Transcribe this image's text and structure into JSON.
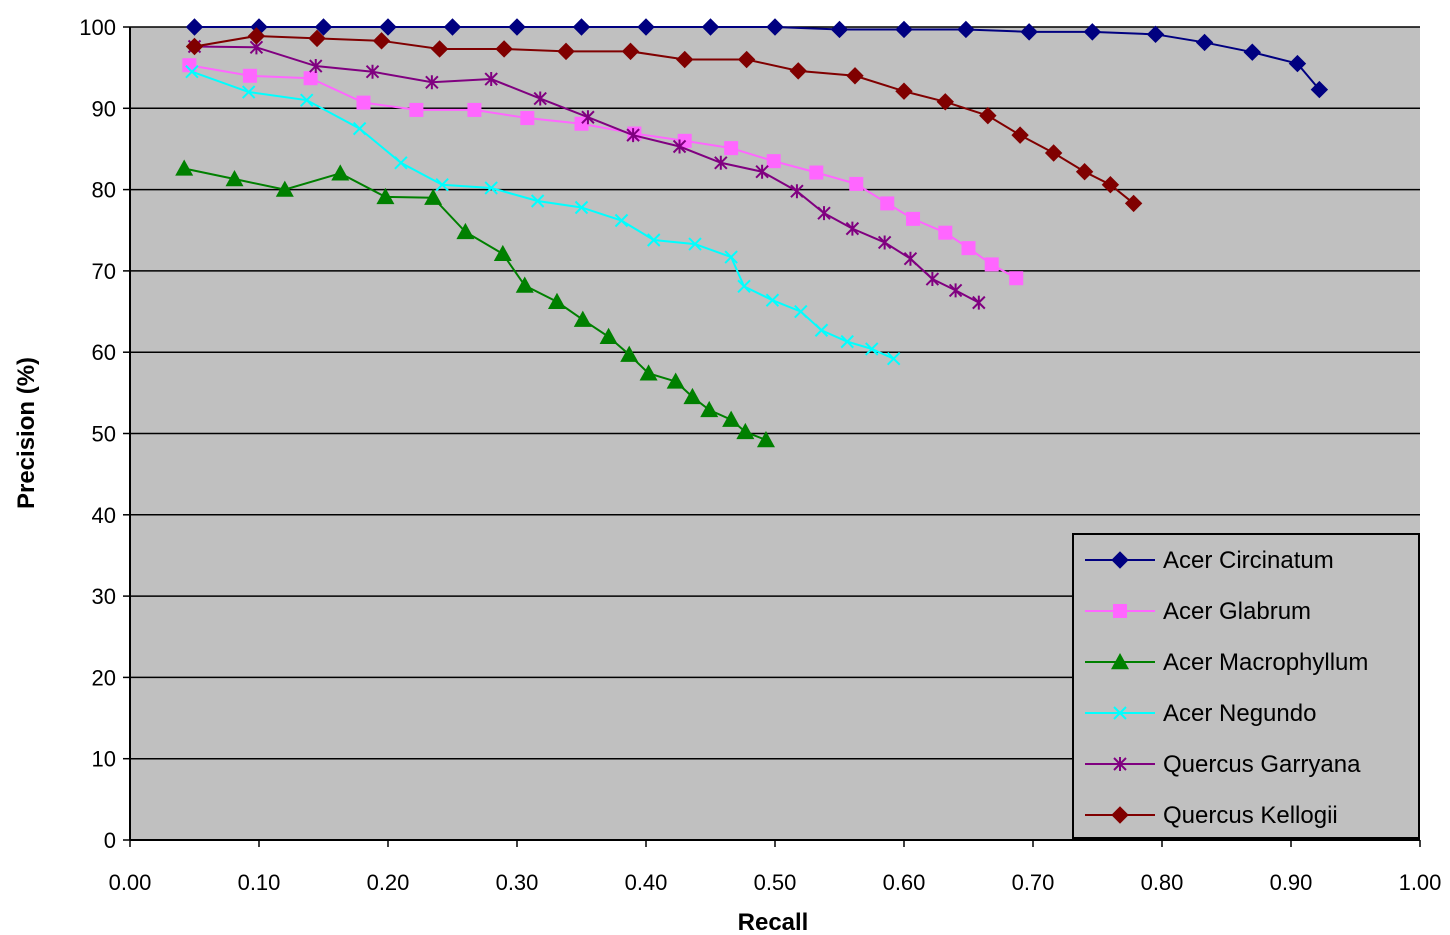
{
  "chart_data": {
    "type": "line",
    "title": "",
    "xlabel": "Recall",
    "ylabel": "Precision (%)",
    "xlim": [
      0,
      1
    ],
    "ylim": [
      0,
      100
    ],
    "x_ticks": [
      "0.00",
      "0.10",
      "0.20",
      "0.30",
      "0.40",
      "0.50",
      "0.60",
      "0.70",
      "0.80",
      "0.90",
      "1.00"
    ],
    "y_ticks": [
      "0",
      "10",
      "20",
      "30",
      "40",
      "50",
      "60",
      "70",
      "80",
      "90",
      "100"
    ],
    "grid": "horizontal",
    "legend_position": "bottom-right",
    "plot_background": "#c0c0c0",
    "series": [
      {
        "name": "Acer Circinatum",
        "color": "#000080",
        "marker": "diamond",
        "points": [
          [
            0.05,
            100
          ],
          [
            0.1,
            100
          ],
          [
            0.15,
            100
          ],
          [
            0.2,
            100
          ],
          [
            0.25,
            100
          ],
          [
            0.3,
            100
          ],
          [
            0.35,
            100
          ],
          [
            0.4,
            100
          ],
          [
            0.45,
            100
          ],
          [
            0.5,
            100
          ],
          [
            0.55,
            99.7
          ],
          [
            0.6,
            99.7
          ],
          [
            0.648,
            99.7
          ],
          [
            0.697,
            99.4
          ],
          [
            0.746,
            99.4
          ],
          [
            0.795,
            99.1
          ],
          [
            0.833,
            98.1
          ],
          [
            0.87,
            96.9
          ],
          [
            0.905,
            95.5
          ],
          [
            0.922,
            92.3
          ]
        ]
      },
      {
        "name": "Acer Glabrum",
        "color": "#ff66ff",
        "marker": "square",
        "points": [
          [
            0.046,
            95.3
          ],
          [
            0.093,
            94.0
          ],
          [
            0.14,
            93.7
          ],
          [
            0.181,
            90.7
          ],
          [
            0.222,
            89.8
          ],
          [
            0.267,
            89.8
          ],
          [
            0.308,
            88.8
          ],
          [
            0.35,
            88.1
          ],
          [
            0.391,
            86.9
          ],
          [
            0.43,
            86.0
          ],
          [
            0.466,
            85.1
          ],
          [
            0.499,
            83.5
          ],
          [
            0.532,
            82.1
          ],
          [
            0.563,
            80.7
          ],
          [
            0.587,
            78.3
          ],
          [
            0.607,
            76.4
          ],
          [
            0.632,
            74.7
          ],
          [
            0.65,
            72.8
          ],
          [
            0.668,
            70.8
          ],
          [
            0.687,
            69.1
          ]
        ]
      },
      {
        "name": "Acer Macrophyllum",
        "color": "#008000",
        "marker": "triangle",
        "points": [
          [
            0.042,
            82.6
          ],
          [
            0.081,
            81.3
          ],
          [
            0.12,
            80.0
          ],
          [
            0.163,
            82.0
          ],
          [
            0.198,
            79.1
          ],
          [
            0.235,
            79.0
          ],
          [
            0.26,
            74.8
          ],
          [
            0.289,
            72.1
          ],
          [
            0.306,
            68.2
          ],
          [
            0.331,
            66.2
          ],
          [
            0.351,
            64.0
          ],
          [
            0.371,
            61.9
          ],
          [
            0.387,
            59.7
          ],
          [
            0.402,
            57.4
          ],
          [
            0.423,
            56.4
          ],
          [
            0.436,
            54.5
          ],
          [
            0.449,
            52.9
          ],
          [
            0.466,
            51.7
          ],
          [
            0.477,
            50.2
          ],
          [
            0.493,
            49.2
          ]
        ]
      },
      {
        "name": "Acer Negundo",
        "color": "#00ffff",
        "marker": "x",
        "points": [
          [
            0.048,
            94.5
          ],
          [
            0.092,
            92.0
          ],
          [
            0.137,
            91.0
          ],
          [
            0.178,
            87.5
          ],
          [
            0.21,
            83.3
          ],
          [
            0.242,
            80.6
          ],
          [
            0.28,
            80.2
          ],
          [
            0.316,
            78.6
          ],
          [
            0.35,
            77.8
          ],
          [
            0.381,
            76.2
          ],
          [
            0.406,
            73.8
          ],
          [
            0.438,
            73.3
          ],
          [
            0.466,
            71.7
          ],
          [
            0.476,
            68.1
          ],
          [
            0.498,
            66.4
          ],
          [
            0.52,
            65.0
          ],
          [
            0.536,
            62.7
          ],
          [
            0.556,
            61.3
          ],
          [
            0.575,
            60.4
          ],
          [
            0.592,
            59.2
          ]
        ]
      },
      {
        "name": "Quercus Garryana",
        "color": "#800080",
        "marker": "star",
        "points": [
          [
            0.05,
            97.6
          ],
          [
            0.098,
            97.5
          ],
          [
            0.144,
            95.2
          ],
          [
            0.188,
            94.5
          ],
          [
            0.234,
            93.2
          ],
          [
            0.28,
            93.6
          ],
          [
            0.318,
            91.2
          ],
          [
            0.355,
            88.9
          ],
          [
            0.39,
            86.7
          ],
          [
            0.426,
            85.3
          ],
          [
            0.458,
            83.3
          ],
          [
            0.49,
            82.2
          ],
          [
            0.517,
            79.8
          ],
          [
            0.538,
            77.1
          ],
          [
            0.56,
            75.2
          ],
          [
            0.585,
            73.5
          ],
          [
            0.605,
            71.5
          ],
          [
            0.622,
            69.0
          ],
          [
            0.64,
            67.6
          ],
          [
            0.658,
            66.1
          ]
        ]
      },
      {
        "name": "Quercus Kellogii",
        "color": "#800000",
        "marker": "diamond",
        "points": [
          [
            0.05,
            97.6
          ],
          [
            0.098,
            98.9
          ],
          [
            0.145,
            98.6
          ],
          [
            0.195,
            98.3
          ],
          [
            0.24,
            97.3
          ],
          [
            0.29,
            97.3
          ],
          [
            0.338,
            97.0
          ],
          [
            0.388,
            97.0
          ],
          [
            0.43,
            96.0
          ],
          [
            0.478,
            96.0
          ],
          [
            0.518,
            94.6
          ],
          [
            0.562,
            94.0
          ],
          [
            0.6,
            92.1
          ],
          [
            0.632,
            90.8
          ],
          [
            0.665,
            89.1
          ],
          [
            0.69,
            86.7
          ],
          [
            0.716,
            84.5
          ],
          [
            0.74,
            82.2
          ],
          [
            0.76,
            80.6
          ],
          [
            0.778,
            78.3
          ]
        ]
      }
    ]
  }
}
